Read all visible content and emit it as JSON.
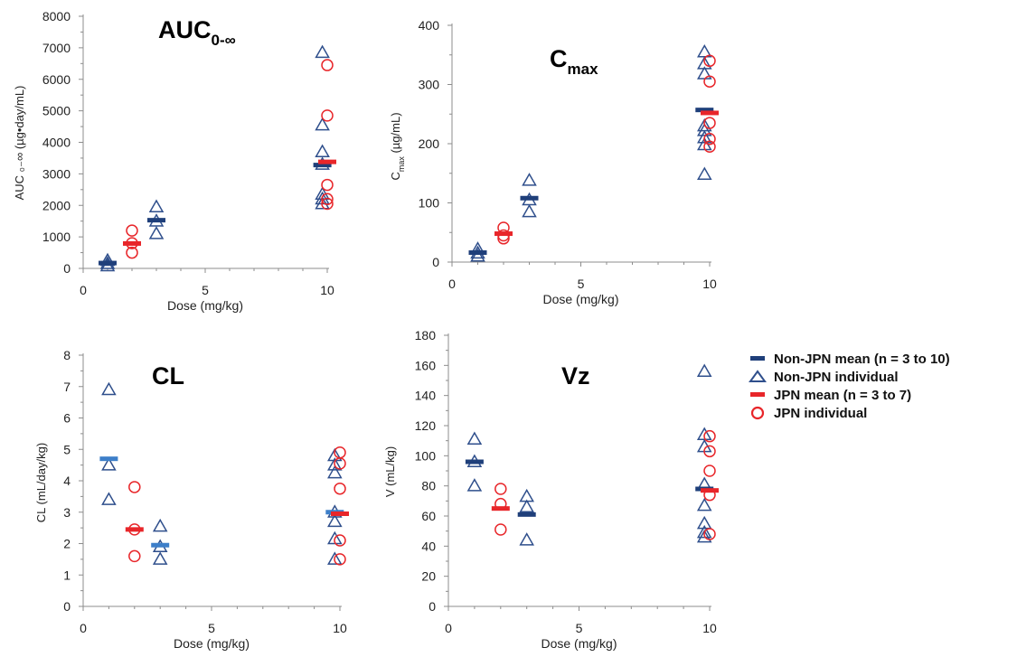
{
  "colors": {
    "non_jpn": "#2f4f8c",
    "non_jpn_mean_light": "#3d7fc9",
    "jpn": "#e8262a",
    "axis": "#8c8c8c"
  },
  "legend": {
    "items": [
      {
        "symbol": "bar",
        "color": "#1f3f7a",
        "label": "Non-JPN mean (n = 3 to 10)"
      },
      {
        "symbol": "triangle",
        "color": "#2f4f8c",
        "label": "Non-JPN individual"
      },
      {
        "symbol": "bar",
        "color": "#e8262a",
        "label": "JPN mean (n = 3 to 7)"
      },
      {
        "symbol": "circle",
        "color": "#e8262a",
        "label": "JPN individual"
      }
    ]
  },
  "chart_data": [
    {
      "type": "scatter",
      "title": "AUC",
      "title_sub": "0-∞",
      "xlabel": "Dose (mg/kg)",
      "ylabel": "AUC ₀₋∞ (µg•day/mL)",
      "xlim": [
        0,
        10
      ],
      "ylim": [
        0,
        8000
      ],
      "xticks": [
        0,
        5,
        10
      ],
      "yticks": [
        0,
        1000,
        2000,
        3000,
        4000,
        5000,
        6000,
        7000,
        8000
      ],
      "non_jpn_individual": [
        [
          1.0,
          80
        ],
        [
          1.0,
          150
        ],
        [
          1.0,
          250
        ],
        [
          3.0,
          1100
        ],
        [
          3.0,
          1500
        ],
        [
          3.0,
          1950
        ],
        [
          9.8,
          2050
        ],
        [
          9.8,
          2200
        ],
        [
          9.8,
          2350
        ],
        [
          9.8,
          3300
        ],
        [
          9.8,
          3700
        ],
        [
          9.8,
          4550
        ],
        [
          9.8,
          6850
        ]
      ],
      "non_jpn_mean": [
        [
          1.0,
          170
        ],
        [
          3.0,
          1530
        ],
        [
          9.8,
          3280
        ]
      ],
      "jpn_individual": [
        [
          2.0,
          500
        ],
        [
          2.0,
          800
        ],
        [
          2.0,
          1200
        ],
        [
          10.0,
          2050
        ],
        [
          10.0,
          2200
        ],
        [
          10.0,
          2650
        ],
        [
          10.0,
          4850
        ],
        [
          10.0,
          6450
        ]
      ],
      "jpn_mean": [
        [
          2.0,
          790
        ],
        [
          10.0,
          3380
        ]
      ]
    },
    {
      "type": "scatter",
      "title": "C",
      "title_sub": "max",
      "xlabel": "Dose (mg/kg)",
      "ylabel_main": "C",
      "ylabel_sub": "max",
      "ylabel_rest": " (µg/mL)",
      "xlim": [
        0,
        10
      ],
      "ylim": [
        0,
        400
      ],
      "xticks": [
        0,
        5,
        10
      ],
      "yticks": [
        0,
        100,
        200,
        300,
        400
      ],
      "non_jpn_individual": [
        [
          1.0,
          10
        ],
        [
          1.0,
          15
        ],
        [
          1.0,
          22
        ],
        [
          3.0,
          85
        ],
        [
          3.0,
          105
        ],
        [
          3.0,
          138
        ],
        [
          9.8,
          148
        ],
        [
          9.8,
          198
        ],
        [
          9.8,
          210
        ],
        [
          9.8,
          222
        ],
        [
          9.8,
          230
        ],
        [
          9.8,
          318
        ],
        [
          9.8,
          335
        ],
        [
          9.8,
          355
        ]
      ],
      "non_jpn_mean": [
        [
          1.0,
          16
        ],
        [
          3.0,
          108
        ],
        [
          9.8,
          257
        ]
      ],
      "jpn_individual": [
        [
          2.0,
          40
        ],
        [
          2.0,
          45
        ],
        [
          2.0,
          58
        ],
        [
          10.0,
          195
        ],
        [
          10.0,
          208
        ],
        [
          10.0,
          235
        ],
        [
          10.0,
          305
        ],
        [
          10.0,
          340
        ]
      ],
      "jpn_mean": [
        [
          2.0,
          48
        ],
        [
          10.0,
          252
        ]
      ]
    },
    {
      "type": "scatter",
      "title": "CL",
      "xlabel": "Dose (mg/kg)",
      "ylabel": "CL (mL/day/kg)",
      "xlim": [
        0,
        10
      ],
      "ylim": [
        0,
        8
      ],
      "xticks": [
        0,
        5,
        10
      ],
      "yticks": [
        0,
        1,
        2,
        3,
        4,
        5,
        6,
        7,
        8
      ],
      "non_jpn_individual": [
        [
          1.0,
          3.4
        ],
        [
          1.0,
          4.5
        ],
        [
          1.0,
          6.9
        ],
        [
          3.0,
          1.5
        ],
        [
          3.0,
          1.9
        ],
        [
          3.0,
          2.55
        ],
        [
          9.8,
          1.5
        ],
        [
          9.8,
          2.15
        ],
        [
          9.8,
          2.7
        ],
        [
          9.8,
          3.0
        ],
        [
          9.8,
          4.25
        ],
        [
          9.8,
          4.5
        ],
        [
          9.8,
          4.8
        ]
      ],
      "non_jpn_mean": [
        [
          1.0,
          4.7
        ],
        [
          3.0,
          1.95
        ],
        [
          9.8,
          3.0
        ]
      ],
      "jpn_individual": [
        [
          2.0,
          1.6
        ],
        [
          2.0,
          2.45
        ],
        [
          2.0,
          3.8
        ],
        [
          10.0,
          1.5
        ],
        [
          10.0,
          2.1
        ],
        [
          10.0,
          3.75
        ],
        [
          10.0,
          4.55
        ],
        [
          10.0,
          4.9
        ]
      ],
      "jpn_mean": [
        [
          2.0,
          2.45
        ],
        [
          10.0,
          2.95
        ]
      ]
    },
    {
      "type": "scatter",
      "title": "Vz",
      "xlabel": "Dose (mg/kg)",
      "ylabel": "V (mL/kg)",
      "xlim": [
        0,
        10
      ],
      "ylim": [
        0,
        180
      ],
      "xticks": [
        0,
        5,
        10
      ],
      "yticks": [
        0,
        20,
        40,
        60,
        80,
        100,
        120,
        140,
        160,
        180
      ],
      "non_jpn_individual": [
        [
          1.0,
          80
        ],
        [
          1.0,
          96
        ],
        [
          1.0,
          111
        ],
        [
          3.0,
          44
        ],
        [
          3.0,
          66
        ],
        [
          3.0,
          73
        ],
        [
          9.8,
          46
        ],
        [
          9.8,
          49
        ],
        [
          9.8,
          55
        ],
        [
          9.8,
          67
        ],
        [
          9.8,
          81
        ],
        [
          9.8,
          106
        ],
        [
          9.8,
          114
        ],
        [
          9.8,
          156
        ]
      ],
      "non_jpn_mean": [
        [
          1.0,
          96
        ],
        [
          3.0,
          61
        ],
        [
          9.8,
          78
        ]
      ],
      "jpn_individual": [
        [
          2.0,
          51
        ],
        [
          2.0,
          68
        ],
        [
          2.0,
          78
        ],
        [
          10.0,
          48
        ],
        [
          10.0,
          74
        ],
        [
          10.0,
          90
        ],
        [
          10.0,
          103
        ],
        [
          10.0,
          113
        ]
      ],
      "jpn_mean": [
        [
          2.0,
          65
        ],
        [
          10.0,
          77
        ]
      ]
    }
  ]
}
